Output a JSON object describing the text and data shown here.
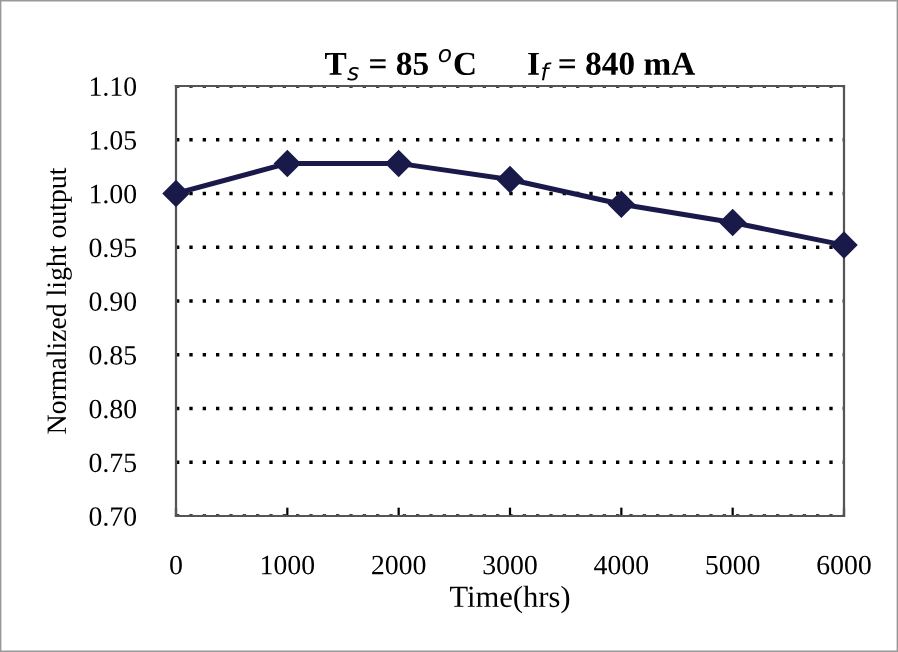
{
  "chart_data": {
    "type": "line",
    "title": "T$_{s}$ = 85 $^{o}$C      I$_{f}$ = 840 mA",
    "xlabel": "Time(hrs)",
    "ylabel": "Normalized light output",
    "x": [
      0,
      1000,
      2000,
      3000,
      4000,
      5000,
      6000
    ],
    "series": [
      {
        "color": "#1a1a4a",
        "values": [
          1.0,
          1.028,
          1.028,
          1.013,
          0.99,
          0.973,
          0.952
        ]
      }
    ],
    "xlim": [
      0,
      6000
    ],
    "xticks": [
      0,
      1000,
      2000,
      3000,
      4000,
      5000,
      6000
    ],
    "ylim": [
      0.7,
      1.1
    ],
    "yticks": [
      {
        "value": 0.7,
        "label": "0.70"
      },
      {
        "value": 0.75,
        "label": "0.75"
      },
      {
        "value": 0.8,
        "label": "0.80"
      },
      {
        "value": 0.85,
        "label": "0.85"
      },
      {
        "value": 0.9,
        "label": "0.90"
      },
      {
        "value": 0.95,
        "label": "0.95"
      },
      {
        "value": 1.0,
        "label": "1.00"
      },
      {
        "value": 1.05,
        "label": "1.05"
      },
      {
        "value": 1.1,
        "label": "1.10"
      }
    ],
    "grid": "y",
    "marker": "diamond",
    "line_style": "solid",
    "legend": false
  }
}
